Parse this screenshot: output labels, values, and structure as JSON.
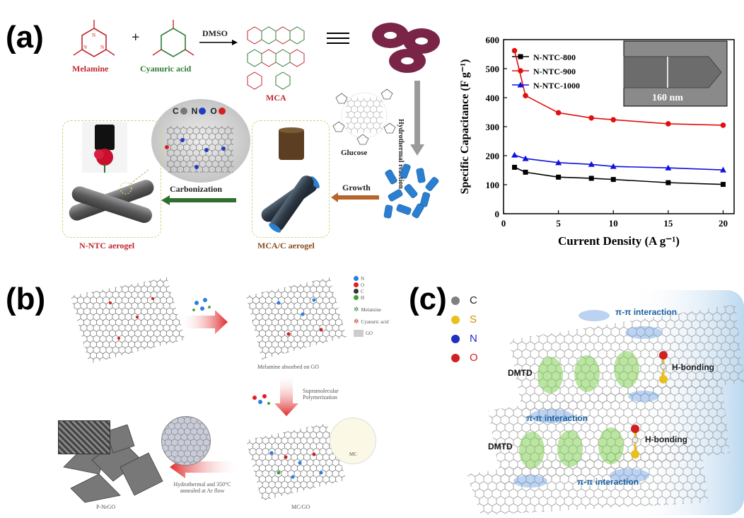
{
  "panels": {
    "a": "(a)",
    "b": "(b)",
    "c": "(c)"
  },
  "panel_a": {
    "melamine": "Melamine",
    "cyanuric_acid": "Cyanuric acid",
    "dmso": "DMSO",
    "mca": "MCA",
    "glucose": "Glucose",
    "hydrothermal": "Hydrothermal reaction",
    "growth": "Growth",
    "carbonization": "Carbonization",
    "nntc_aerogel": "N-NTC aerogel",
    "mcac_aerogel": "MCA/C aerogel",
    "legend_atoms": [
      "C",
      "N",
      "O"
    ],
    "atom_colors": [
      "#777777",
      "#1f3fbf",
      "#d62020"
    ]
  },
  "chart_data": {
    "type": "line",
    "xlabel": "Current Density (A g⁻¹)",
    "ylabel": "Specific Capacitance (F g⁻¹)",
    "xlim": [
      0,
      21
    ],
    "ylim": [
      0,
      600
    ],
    "xticks": [
      0,
      5,
      10,
      15,
      20
    ],
    "yticks": [
      0,
      100,
      200,
      300,
      400,
      500,
      600
    ],
    "legend_position": "top-left",
    "inset_label": "160 nm",
    "series": [
      {
        "name": "N-NTC-800",
        "color": "#000000",
        "marker": "square",
        "x": [
          1,
          2,
          5,
          8,
          10,
          15,
          20
        ],
        "y": [
          160,
          143,
          126,
          122,
          118,
          107,
          101
        ]
      },
      {
        "name": "N-NTC-900",
        "color": "#e01010",
        "marker": "circle",
        "x": [
          1,
          2,
          5,
          8,
          10,
          15,
          20
        ],
        "y": [
          562,
          407,
          348,
          330,
          324,
          310,
          305
        ]
      },
      {
        "name": "N-NTC-1000",
        "color": "#1010e0",
        "marker": "triangle",
        "x": [
          1,
          2,
          5,
          8,
          10,
          15,
          20
        ],
        "y": [
          202,
          190,
          176,
          170,
          163,
          158,
          151
        ]
      }
    ]
  },
  "panel_b": {
    "legend_items": [
      "N",
      "O",
      "C",
      "H",
      "Melamine",
      "Cyanuric acid",
      "GO"
    ],
    "legend_colors": [
      "#2a7de1",
      "#e02020",
      "#333333",
      "#cccccc"
    ],
    "melamine_absorbed": "Melamine absorbed on GO",
    "supramolecular": "Supramolecular Polymerization",
    "mc": "MC",
    "hydrothermal_anneal": "Hydrothermal and 350°C annealed at Ar flow",
    "mcgo": "MC/GO",
    "prgo": "P-NrGO"
  },
  "panel_c": {
    "legend": [
      {
        "label": "C",
        "color": "#808080"
      },
      {
        "label": "S",
        "color": "#e8c020"
      },
      {
        "label": "N",
        "color": "#2030c0"
      },
      {
        "label": "O",
        "color": "#d02020"
      }
    ],
    "pi_pi_1": "π-π interaction",
    "pi_pi_2": "π-π interaction",
    "pi_pi_3": "π-π interaction",
    "dmtd_1": "DMTD",
    "dmtd_2": "DMTD",
    "hbond_1": "H-bonding",
    "hbond_2": "H-bonding"
  }
}
